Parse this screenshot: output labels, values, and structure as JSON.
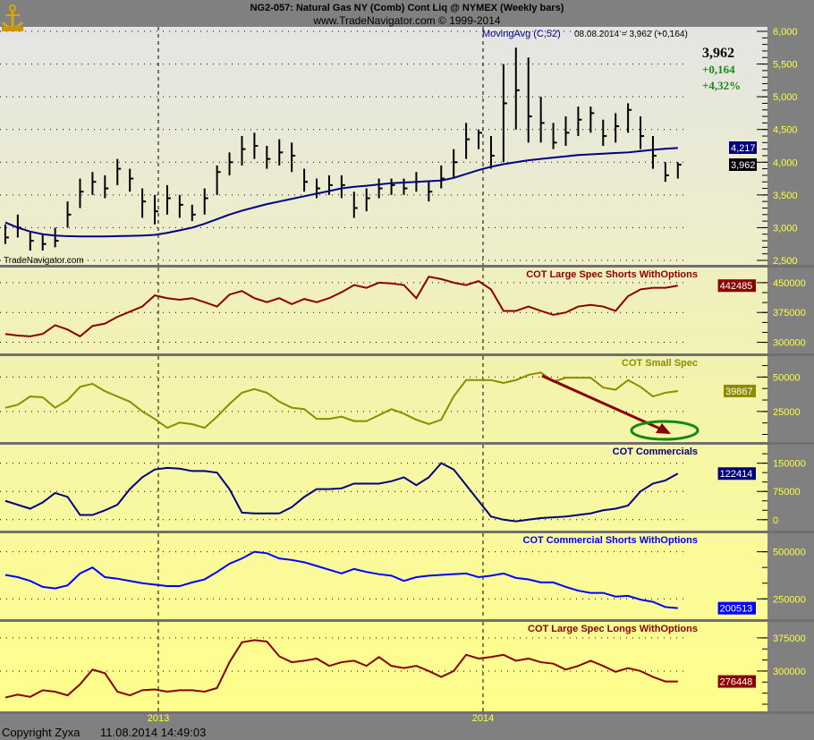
{
  "header": {
    "title": "NG2-057:  Natural Gas NY (Comb) Cont Liq @ NYMEX  (Weekly bars)",
    "subtitle": "www.TradeNavigator.com © 1999-2014",
    "logo_icon": "anchor-icon"
  },
  "price_panel": {
    "indicator_label": "MovingAvg (C,52)",
    "readout": "08.08.2014 = 3,962 (+0,164)",
    "last_price": "3,962",
    "change": "+0,164",
    "change_pct": "+4,32%",
    "watermark": "TradeNavigator.com",
    "ma_badge": "4,217",
    "price_badge": "3,962",
    "change_color": "#1a8a1a"
  },
  "footer": {
    "copyright": "Copyright Zyxa",
    "timestamp": "11.08.2014 14:49:03",
    "year_labels": [
      "2013",
      "2014"
    ]
  },
  "annotations": {
    "arrow_color": "#8b0000",
    "ellipse_color": "#108a10"
  },
  "chart_data": [
    {
      "type": "ohlc+line",
      "title": "NG2-057:  Natural Gas NY (Comb) Cont Liq @ NYMEX  (Weekly bars)",
      "ylim": [
        2500,
        6000
      ],
      "yticks": [
        "2,500",
        "3,000",
        "3,500",
        "4,000",
        "4,500",
        "5,000",
        "5,500",
        "6,000"
      ],
      "grid": true,
      "x": [
        "2012-07-13",
        "2012-07-27",
        "2012-08-10",
        "2012-08-24",
        "2012-09-07",
        "2012-09-21",
        "2012-10-05",
        "2012-10-19",
        "2012-11-02",
        "2012-11-16",
        "2012-11-30",
        "2012-12-14",
        "2012-12-28",
        "2013-01-11",
        "2013-01-25",
        "2013-02-08",
        "2013-02-22",
        "2013-03-08",
        "2013-03-22",
        "2013-04-05",
        "2013-04-19",
        "2013-05-03",
        "2013-05-17",
        "2013-05-31",
        "2013-06-14",
        "2013-06-28",
        "2013-07-12",
        "2013-07-26",
        "2013-08-09",
        "2013-08-23",
        "2013-09-06",
        "2013-09-20",
        "2013-10-04",
        "2013-10-18",
        "2013-11-01",
        "2013-11-15",
        "2013-11-29",
        "2013-12-13",
        "2013-12-27",
        "2014-01-10",
        "2014-01-24",
        "2014-02-07",
        "2014-02-21",
        "2014-03-07",
        "2014-03-21",
        "2014-04-04",
        "2014-04-18",
        "2014-05-02",
        "2014-05-16",
        "2014-05-30",
        "2014-06-13",
        "2014-06-27",
        "2014-07-11",
        "2014-07-25",
        "2014-08-08"
      ],
      "high": [
        3050,
        3200,
        2950,
        2900,
        3000,
        3400,
        3750,
        3850,
        3800,
        4050,
        3900,
        3600,
        3500,
        3650,
        3500,
        3350,
        3600,
        3950,
        4150,
        4400,
        4450,
        4250,
        4350,
        4300,
        3900,
        3750,
        3800,
        3800,
        3550,
        3600,
        3750,
        3750,
        3750,
        3850,
        3700,
        3950,
        4200,
        4600,
        4500,
        4400,
        5500,
        5750,
        5600,
        5000,
        4600,
        4700,
        4850,
        4850,
        4650,
        4750,
        4900,
        4700,
        4400,
        4000,
        4000
      ],
      "low": [
        2750,
        2850,
        2650,
        2650,
        2700,
        3000,
        3300,
        3500,
        3450,
        3650,
        3550,
        3150,
        3050,
        3200,
        3150,
        3100,
        3200,
        3500,
        3800,
        3950,
        4050,
        3900,
        3950,
        3850,
        3550,
        3450,
        3500,
        3450,
        3150,
        3250,
        3450,
        3500,
        3500,
        3550,
        3400,
        3600,
        3750,
        4050,
        4200,
        3900,
        4000,
        4500,
        4300,
        4300,
        4200,
        4250,
        4400,
        4450,
        4250,
        4300,
        4450,
        4200,
        3900,
        3700,
        3750
      ],
      "close": [
        2850,
        3000,
        2800,
        2750,
        2800,
        3200,
        3550,
        3700,
        3600,
        3900,
        3750,
        3400,
        3250,
        3450,
        3350,
        3200,
        3450,
        3850,
        4000,
        4200,
        4250,
        4050,
        4150,
        4100,
        3700,
        3600,
        3650,
        3650,
        3300,
        3450,
        3600,
        3650,
        3600,
        3700,
        3550,
        3750,
        4000,
        4350,
        4450,
        4100,
        4900,
        5100,
        4700,
        4600,
        4300,
        4450,
        4650,
        4750,
        4400,
        4550,
        4800,
        4400,
        4100,
        3800,
        3962
      ],
      "series": [
        {
          "name": "MovingAvg (C,52)",
          "color": "#000080",
          "values": [
            3080,
            3000,
            2940,
            2900,
            2880,
            2870,
            2865,
            2865,
            2865,
            2870,
            2875,
            2880,
            2890,
            2920,
            2960,
            3000,
            3060,
            3130,
            3200,
            3260,
            3310,
            3360,
            3400,
            3440,
            3480,
            3520,
            3560,
            3600,
            3625,
            3640,
            3660,
            3680,
            3690,
            3700,
            3710,
            3720,
            3760,
            3820,
            3880,
            3930,
            3970,
            4000,
            4030,
            4050,
            4070,
            4090,
            4110,
            4120,
            4130,
            4140,
            4150,
            4170,
            4190,
            4205,
            4217
          ]
        }
      ]
    },
    {
      "type": "line",
      "title": "COT Large Spec Shorts WithOptions",
      "color": "#8b0000",
      "ylim": [
        290000,
        470000
      ],
      "yticks": [
        "450000",
        "375000",
        "300000"
      ],
      "last": "442485",
      "values": [
        321000,
        317000,
        315000,
        321000,
        343000,
        332000,
        315000,
        341000,
        347000,
        364000,
        377000,
        390000,
        418000,
        411000,
        407000,
        411000,
        401000,
        390000,
        420000,
        429000,
        411000,
        401000,
        411000,
        396000,
        409000,
        401000,
        411000,
        426000,
        444000,
        437000,
        450000,
        448000,
        444000,
        411000,
        465000,
        459000,
        450000,
        444000,
        454000,
        433000,
        379000,
        379000,
        390000,
        379000,
        369000,
        375000,
        390000,
        394000,
        390000,
        379000,
        416000,
        433000,
        437000,
        437000,
        442485
      ]
    },
    {
      "type": "line",
      "title": "COT Small Spec",
      "color": "#8c8c00",
      "ylim": [
        8000,
        60000
      ],
      "yticks": [
        "50000",
        "25000"
      ],
      "last": "39867",
      "values": [
        27700,
        29900,
        35900,
        35300,
        27700,
        33200,
        42900,
        45100,
        39700,
        35900,
        32100,
        25000,
        19600,
        13100,
        16900,
        15800,
        13100,
        21200,
        30500,
        38600,
        41300,
        38600,
        32100,
        27700,
        26700,
        19600,
        19600,
        21200,
        18000,
        18000,
        22300,
        26700,
        23400,
        19000,
        15800,
        19000,
        35900,
        47800,
        47800,
        47800,
        45700,
        47800,
        51600,
        53300,
        46700,
        49500,
        49500,
        49500,
        42400,
        40800,
        47800,
        42900,
        35900,
        38600,
        39867
      ]
    },
    {
      "type": "line",
      "title": "COT Commercials",
      "color": "#000080",
      "ylim": [
        -10000,
        180000
      ],
      "yticks": [
        "150000",
        "75000",
        "0"
      ],
      "last": "122414",
      "values": [
        50000,
        39600,
        29200,
        45800,
        70800,
        60400,
        12500,
        12500,
        25000,
        39600,
        81200,
        112500,
        133300,
        137500,
        135400,
        129100,
        129100,
        125000,
        81200,
        18700,
        16700,
        16700,
        16700,
        33300,
        60400,
        81200,
        81200,
        83300,
        95800,
        95800,
        95800,
        102100,
        112500,
        91700,
        112500,
        150000,
        133300,
        91700,
        50000,
        8300,
        0,
        -4200,
        0,
        4200,
        6200,
        8300,
        12500,
        16700,
        25000,
        29200,
        37500,
        75000,
        95800,
        104200,
        122414
      ]
    },
    {
      "type": "line",
      "title": "COT Commercial Shorts WithOptions",
      "color": "#0000ff",
      "ylim": [
        180000,
        560000
      ],
      "yticks": [
        "500000",
        "250000"
      ],
      "last": "200513",
      "values": [
        377000,
        365100,
        345200,
        313500,
        305600,
        321400,
        384900,
        416700,
        365100,
        357200,
        345200,
        333300,
        325400,
        317500,
        317500,
        337300,
        353200,
        392900,
        436500,
        464300,
        500000,
        492100,
        464300,
        456400,
        444400,
        424600,
        404800,
        384900,
        408700,
        392900,
        381000,
        373000,
        345200,
        365100,
        373000,
        377000,
        381000,
        384900,
        365100,
        373000,
        384900,
        361100,
        353200,
        337300,
        337300,
        313500,
        293700,
        281800,
        281800,
        261900,
        265900,
        246000,
        234100,
        206400,
        200513
      ]
    },
    {
      "type": "line",
      "title": "COT Large Spec Longs WithOptions",
      "color": "#8b0000",
      "ylim": [
        225000,
        395000
      ],
      "yticks": [
        "375000",
        "300000"
      ],
      "last": "276448",
      "values": [
        240000,
        246600,
        241600,
        256600,
        253300,
        245000,
        270000,
        303300,
        295000,
        253300,
        245000,
        256600,
        258300,
        253300,
        256600,
        256600,
        253300,
        261700,
        320000,
        365000,
        370000,
        366700,
        333300,
        320000,
        323300,
        328300,
        311700,
        320000,
        323300,
        311700,
        331700,
        311700,
        306700,
        311700,
        300000,
        286700,
        300000,
        336700,
        328300,
        331700,
        336700,
        323300,
        328300,
        320000,
        316700,
        303300,
        311700,
        323300,
        311700,
        298300,
        306700,
        300000,
        286700,
        276448,
        276448
      ]
    }
  ]
}
